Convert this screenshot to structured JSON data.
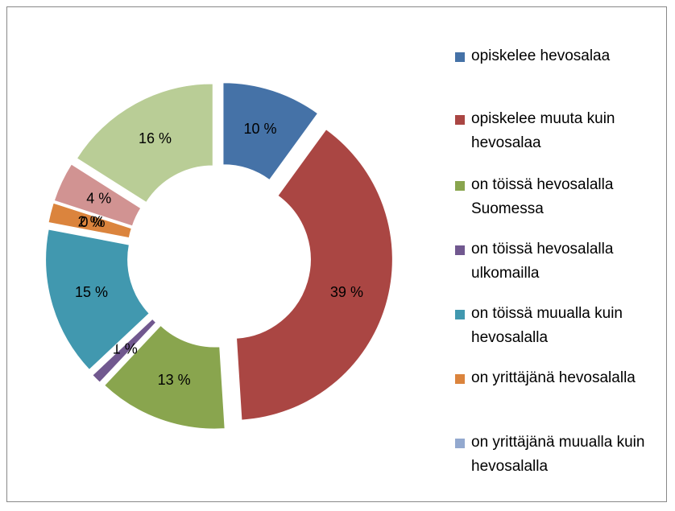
{
  "chart_data": {
    "type": "doughnut",
    "categories": [
      "opiskelee hevosalaa",
      "opiskelee muuta kuin hevosalaa",
      "on töissä hevosalalla Suomessa",
      "on töissä hevosalalla ulkomailla",
      "on töissä muualla kuin hevosalalla",
      "on yrittäjänä hevosalalla",
      "on yrittäjänä muualla kuin hevosalalla",
      null,
      null
    ],
    "values": [
      10,
      39,
      13,
      1,
      15,
      2,
      0,
      4,
      16
    ],
    "value_labels": [
      "10 %",
      "39 %",
      "13 %",
      "1 %",
      "15 %",
      "2 %",
      "0 %",
      "4 %",
      "16 %"
    ],
    "colors": [
      "#4572a7",
      "#aa4643",
      "#89a54e",
      "#71588f",
      "#4198af",
      "#db843d",
      "#93a9cf",
      "#d19392",
      "#b9cd96"
    ],
    "legend": "right",
    "exploded": true
  }
}
